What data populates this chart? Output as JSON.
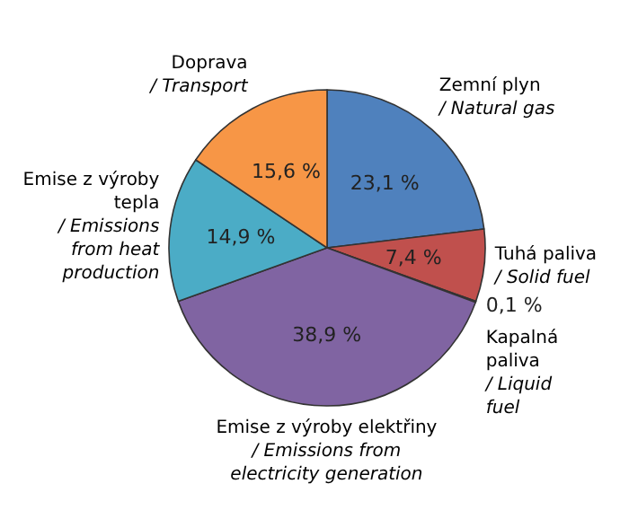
{
  "chart_data": {
    "type": "pie",
    "categories": [
      "Zemní plyn / Natural gas",
      "Tuhá paliva / Solid fuel",
      "Kapalná paliva / Liquid fuel",
      "Emise z výroby elektřiny / Emissions from electricity generation",
      "Emise z výroby tepla / Emissions from heat production",
      "Doprava / Transport"
    ],
    "values": [
      23.1,
      7.4,
      0.1,
      38.9,
      14.9,
      15.6
    ],
    "value_labels": [
      "23,1 %",
      "7,4 %",
      "0,1 %",
      "38,9 %",
      "14,9 %",
      "15,6 %"
    ],
    "colors": [
      "#4f81bd",
      "#c0504d",
      "#9bbb59",
      "#8064a2",
      "#4bacc6",
      "#f79646"
    ],
    "legend": false
  }
}
